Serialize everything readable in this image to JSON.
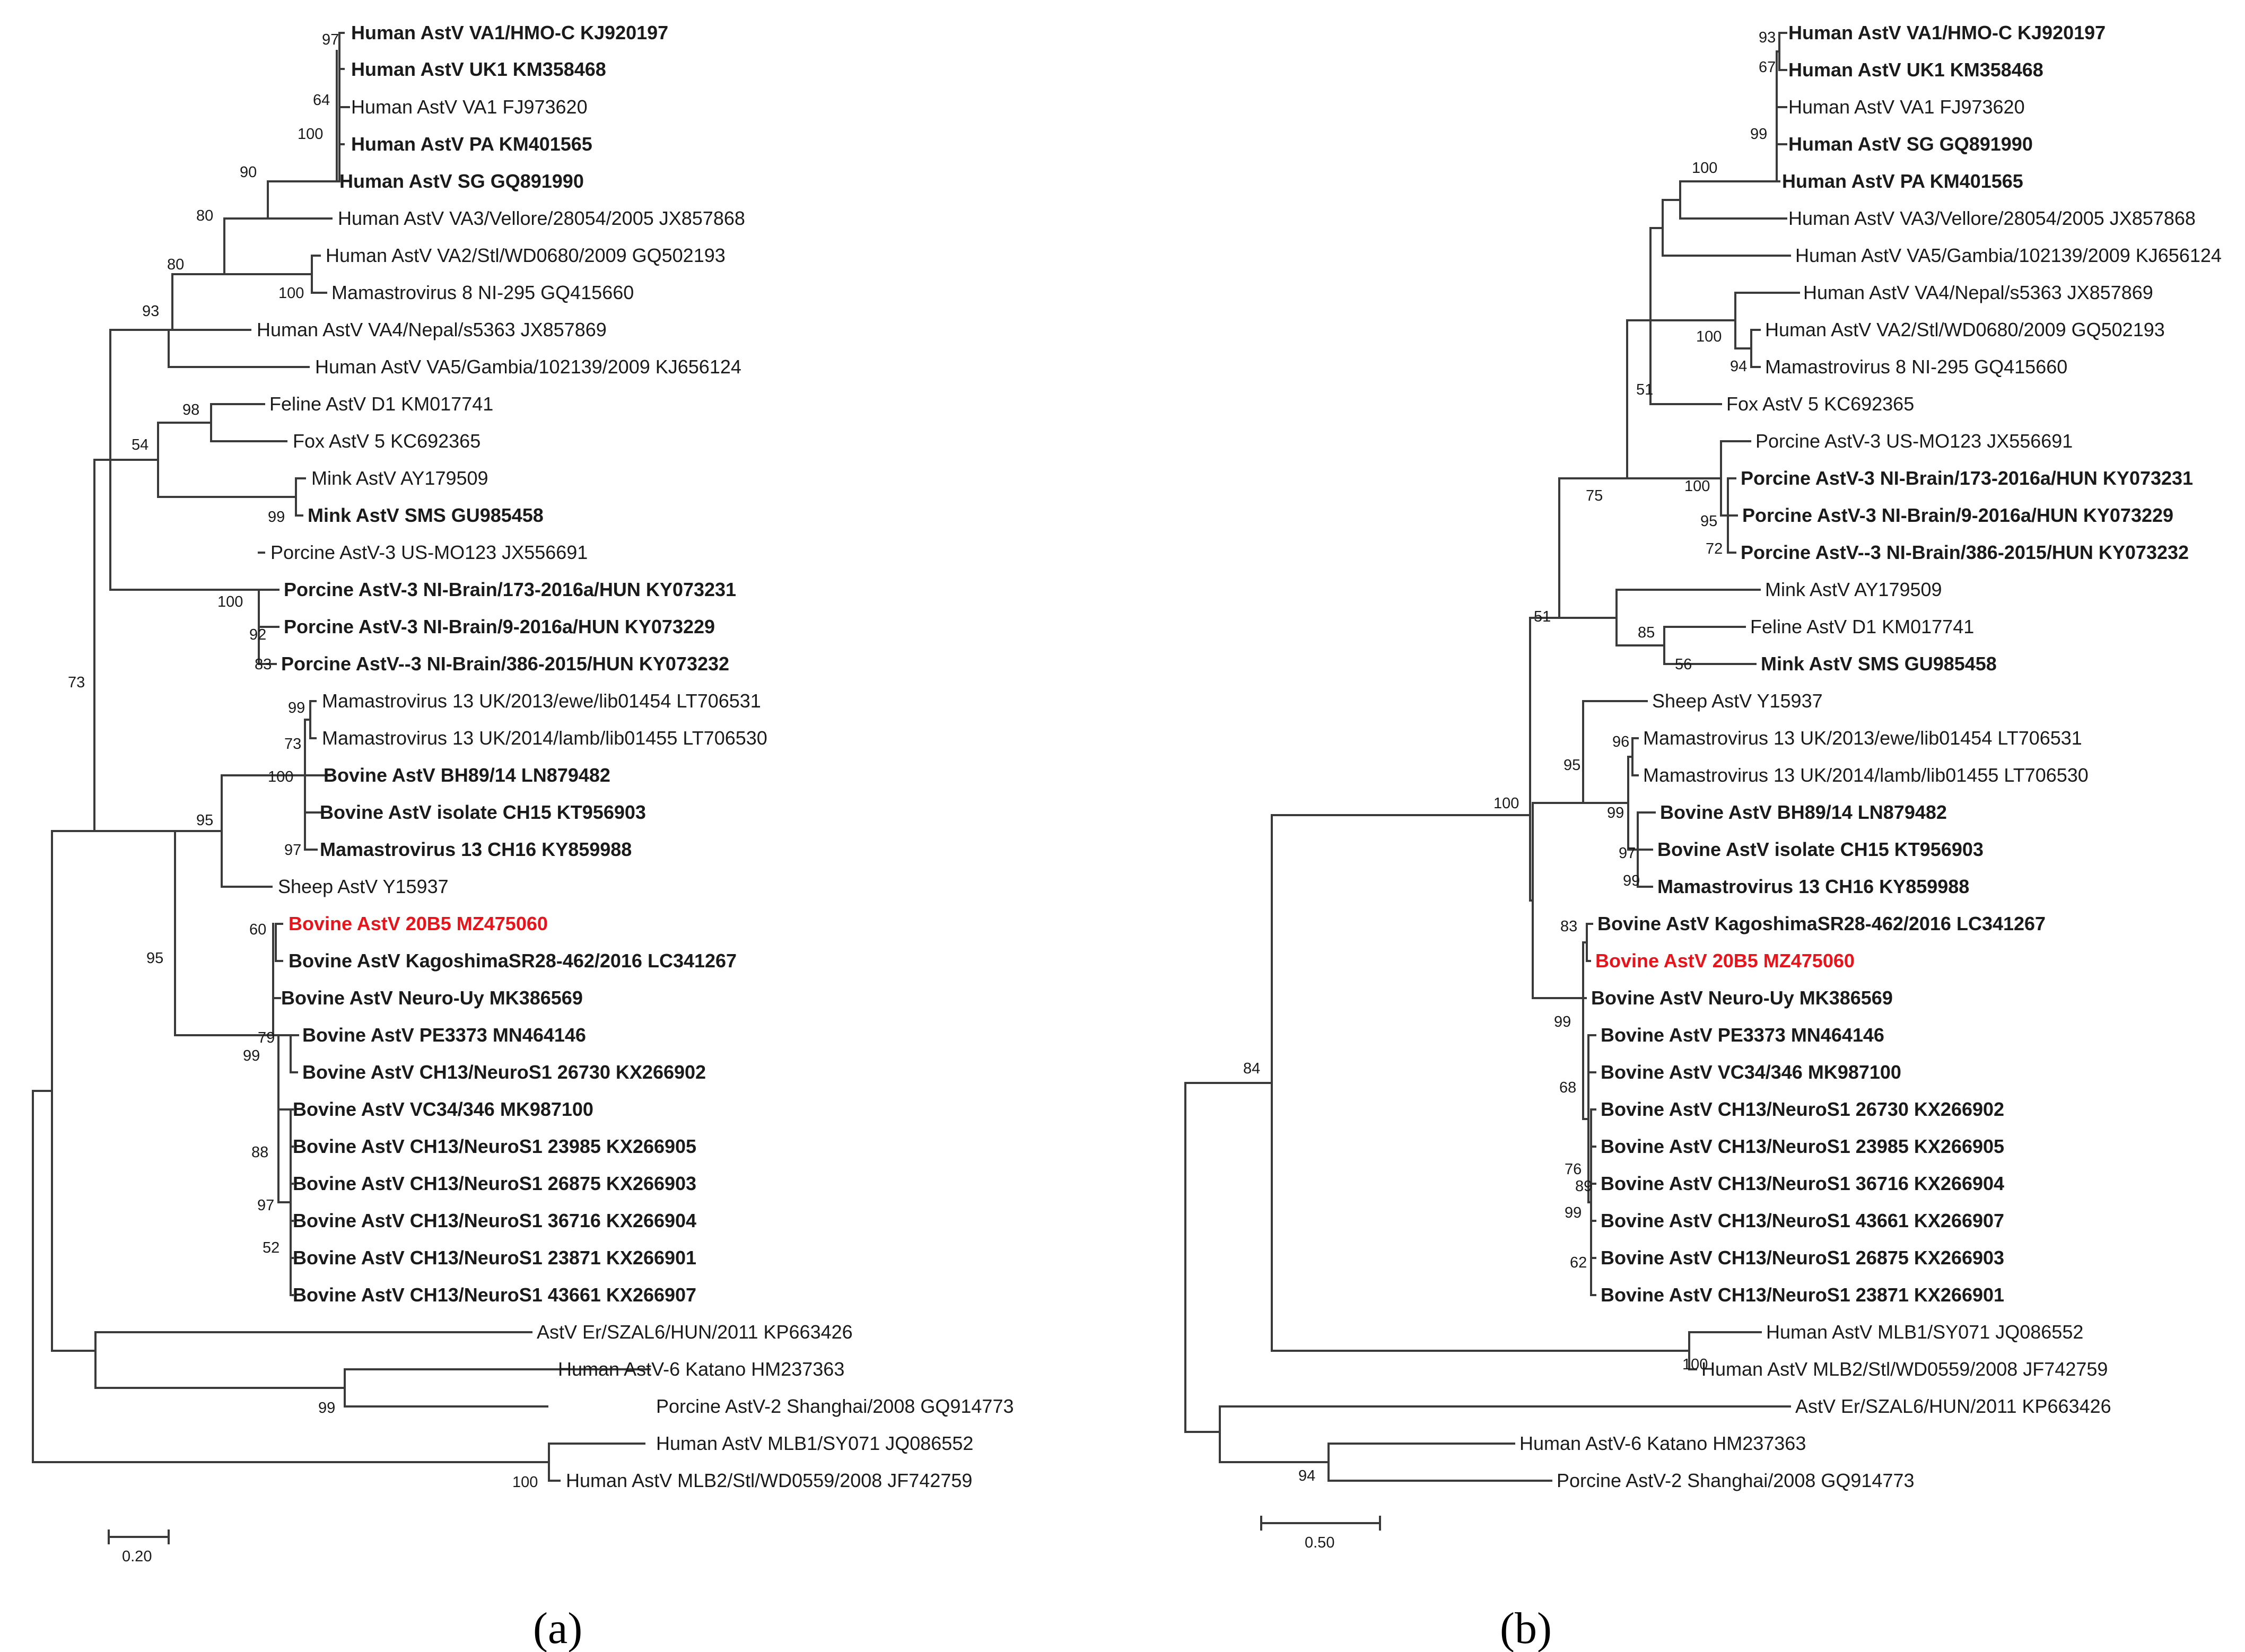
{
  "figure": {
    "panels": [
      {
        "caption": "(a)",
        "scale_label": "0.20",
        "leaves": [
          {
            "name": "Human AstV VA1/HMO-C KJ920197",
            "bold": true
          },
          {
            "name": "Human AstV UK1 KM358468",
            "bold": true
          },
          {
            "name": "Human AstV VA1 FJ973620",
            "bold": false
          },
          {
            "name": "Human AstV PA KM401565",
            "bold": true
          },
          {
            "name": "Human AstV SG GQ891990",
            "bold": true
          },
          {
            "name": "Human AstV VA3/Vellore/28054/2005 JX857868",
            "bold": false
          },
          {
            "name": "Human AstV VA2/Stl/WD0680/2009 GQ502193",
            "bold": false
          },
          {
            "name": "Mamastrovirus 8 NI-295 GQ415660",
            "bold": false
          },
          {
            "name": "Human AstV VA4/Nepal/s5363 JX857869",
            "bold": false
          },
          {
            "name": "Human AstV VA5/Gambia/102139/2009 KJ656124",
            "bold": false
          },
          {
            "name": "Feline AstV D1 KM017741",
            "bold": false
          },
          {
            "name": "Fox AstV 5 KC692365",
            "bold": false
          },
          {
            "name": "Mink AstV AY179509",
            "bold": false
          },
          {
            "name": "Mink AstV SMS GU985458",
            "bold": true
          },
          {
            "name": "Porcine AstV-3 US-MO123 JX556691",
            "bold": false
          },
          {
            "name": "Porcine AstV-3 NI-Brain/173-2016a/HUN KY073231",
            "bold": true
          },
          {
            "name": "Porcine AstV-3 NI-Brain/9-2016a/HUN KY073229",
            "bold": true
          },
          {
            "name": "Porcine AstV--3 NI-Brain/386-2015/HUN KY073232",
            "bold": true
          },
          {
            "name": "Mamastrovirus 13 UK/2013/ewe/lib01454 LT706531",
            "bold": false
          },
          {
            "name": "Mamastrovirus 13 UK/2014/lamb/lib01455 LT706530",
            "bold": false
          },
          {
            "name": "Bovine AstV BH89/14 LN879482",
            "bold": true
          },
          {
            "name": "Bovine AstV isolate CH15 KT956903",
            "bold": true
          },
          {
            "name": "Mamastrovirus 13 CH16 KY859988",
            "bold": true
          },
          {
            "name": "Sheep AstV Y15937",
            "bold": false
          },
          {
            "name": "Bovine AstV 20B5 MZ475060",
            "bold": true,
            "highlight": true
          },
          {
            "name": "Bovine AstV KagoshimaSR28-462/2016 LC341267",
            "bold": true
          },
          {
            "name": "Bovine AstV Neuro-Uy MK386569",
            "bold": true
          },
          {
            "name": "Bovine AstV PE3373 MN464146",
            "bold": true
          },
          {
            "name": "Bovine AstV CH13/NeuroS1 26730 KX266902",
            "bold": true
          },
          {
            "name": "Bovine AstV VC34/346 MK987100",
            "bold": true
          },
          {
            "name": "Bovine  AstV CH13/NeuroS1 23985 KX266905",
            "bold": true
          },
          {
            "name": "Bovine AstV CH13/NeuroS1 26875 KX266903",
            "bold": true
          },
          {
            "name": "Bovine AstV CH13/NeuroS1 36716 KX266904",
            "bold": true
          },
          {
            "name": "Bovine AstV CH13/NeuroS1 23871 KX266901",
            "bold": true
          },
          {
            "name": "Bovine AstV CH13/NeuroS1 43661 KX266907",
            "bold": true
          },
          {
            "name": "AstV Er/SZAL6/HUN/2011 KP663426",
            "bold": false
          },
          {
            "name": "Human AstV-6 Katano HM237363",
            "bold": false
          },
          {
            "name": "Porcine AstV-2 Shanghai/2008 GQ914773",
            "bold": false
          },
          {
            "name": "Human AstV MLB1/SY071 JQ086552",
            "bold": false
          },
          {
            "name": "Human AstV MLB2/Stl/WD0559/2008 JF742759",
            "bold": false
          }
        ],
        "bootstrap": [
          "97",
          "64",
          "100",
          "90",
          "80",
          "100",
          "80",
          "93",
          "98",
          "54",
          "99",
          "100",
          "92",
          "83",
          "99",
          "73",
          "100",
          "97",
          "95",
          "60",
          "79",
          "99",
          "88",
          "97",
          "52",
          "95",
          "73",
          "99",
          "100"
        ]
      },
      {
        "caption": "(b)",
        "scale_label": "0.50",
        "leaves": [
          {
            "name": "Human AstV VA1/HMO-C KJ920197",
            "bold": true
          },
          {
            "name": "Human AstV UK1 KM358468",
            "bold": true
          },
          {
            "name": "Human AstV VA1 FJ973620",
            "bold": false
          },
          {
            "name": "Human AstV SG GQ891990",
            "bold": true
          },
          {
            "name": "Human AstV PA KM401565",
            "bold": true
          },
          {
            "name": "Human AstV VA3/Vellore/28054/2005 JX857868",
            "bold": false
          },
          {
            "name": "Human AstV VA5/Gambia/102139/2009 KJ656124",
            "bold": false
          },
          {
            "name": "Human AstV VA4/Nepal/s5363 JX857869",
            "bold": false
          },
          {
            "name": "Human AstV VA2/Stl/WD0680/2009 GQ502193",
            "bold": false
          },
          {
            "name": "Mamastrovirus 8 NI-295 GQ415660",
            "bold": false
          },
          {
            "name": "Fox AstV 5 KC692365",
            "bold": false
          },
          {
            "name": "Porcine AstV-3 US-MO123 JX556691",
            "bold": false
          },
          {
            "name": "Porcine AstV-3 NI-Brain/173-2016a/HUN KY073231",
            "bold": true
          },
          {
            "name": "Porcine AstV-3 NI-Brain/9-2016a/HUN KY073229",
            "bold": true
          },
          {
            "name": "Porcine AstV--3 NI-Brain/386-2015/HUN KY073232",
            "bold": true
          },
          {
            "name": "Mink AstV AY179509",
            "bold": false
          },
          {
            "name": "Feline AstV D1 KM017741",
            "bold": false
          },
          {
            "name": "Mink AstV SMS GU985458",
            "bold": true
          },
          {
            "name": "Sheep AstV Y15937",
            "bold": false
          },
          {
            "name": "Mamastrovirus 13 UK/2013/ewe/lib01454 LT706531",
            "bold": false
          },
          {
            "name": "Mamastrovirus 13 UK/2014/lamb/lib01455 LT706530",
            "bold": false
          },
          {
            "name": "Bovine AstV BH89/14 LN879482",
            "bold": true
          },
          {
            "name": "Bovine AstV isolate CH15 KT956903",
            "bold": true
          },
          {
            "name": "Mamastrovirus 13 CH16 KY859988",
            "bold": true
          },
          {
            "name": "Bovine AstV KagoshimaSR28-462/2016 LC341267",
            "bold": true
          },
          {
            "name": "Bovine AstV 20B5 MZ475060",
            "bold": true,
            "highlight": true
          },
          {
            "name": "Bovine AstV Neuro-Uy MK386569",
            "bold": true
          },
          {
            "name": "Bovine AstV PE3373 MN464146",
            "bold": true
          },
          {
            "name": "Bovine AstV VC34/346 MK987100",
            "bold": true
          },
          {
            "name": "Bovine AstV CH13/NeuroS1 26730 KX266902",
            "bold": true
          },
          {
            "name": "Bovine  AstV CH13/NeuroS1 23985 KX266905",
            "bold": true
          },
          {
            "name": "Bovine AstV CH13/NeuroS1 36716 KX266904",
            "bold": true
          },
          {
            "name": "Bovine AstV CH13/NeuroS1 43661 KX266907",
            "bold": true
          },
          {
            "name": "Bovine AstV CH13/NeuroS1 26875 KX266903",
            "bold": true
          },
          {
            "name": "Bovine AstV CH13/NeuroS1 23871 KX266901",
            "bold": true
          },
          {
            "name": "Human AstV MLB1/SY071 JQ086552",
            "bold": false
          },
          {
            "name": "Human AstV MLB2/Stl/WD0559/2008 JF742759",
            "bold": false
          },
          {
            "name": "AstV Er/SZAL6/HUN/2011 KP663426",
            "bold": false
          },
          {
            "name": "Human AstV-6 Katano HM237363",
            "bold": false
          },
          {
            "name": "Porcine AstV-2 Shanghai/2008 GQ914773",
            "bold": false
          }
        ],
        "bootstrap": [
          "93",
          "67",
          "99",
          "100",
          "100",
          "94",
          "51",
          "100",
          "95",
          "72",
          "75",
          "85",
          "56",
          "51",
          "96",
          "95",
          "99",
          "97",
          "99",
          "100",
          "83",
          "99",
          "68",
          "76",
          "89",
          "99",
          "62",
          "100",
          "84",
          "94"
        ]
      }
    ],
    "colors": {
      "highlight": "#e8141c",
      "branch": "#3a3a3a",
      "text": "#1a1a1a"
    }
  }
}
